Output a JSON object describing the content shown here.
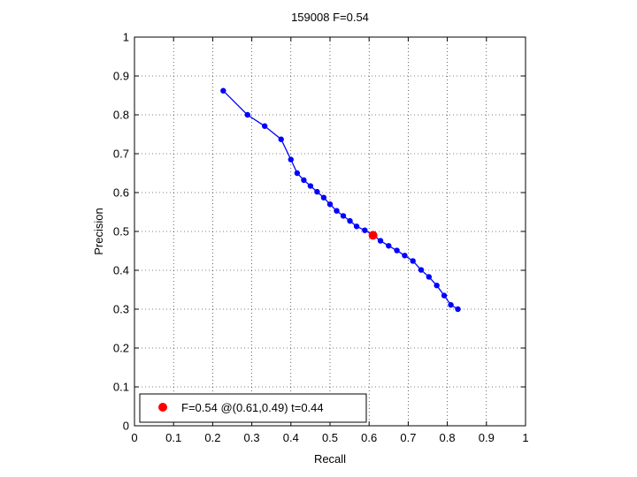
{
  "chart_data": {
    "type": "line",
    "title": "159008 F=0.54",
    "xlabel": "Recall",
    "ylabel": "Precision",
    "xlim": [
      0,
      1
    ],
    "ylim": [
      0,
      1
    ],
    "xticks": [
      "0",
      "0.1",
      "0.2",
      "0.3",
      "0.4",
      "0.5",
      "0.6",
      "0.7",
      "0.8",
      "0.9",
      "1"
    ],
    "yticks": [
      "0",
      "0.1",
      "0.2",
      "0.3",
      "0.4",
      "0.5",
      "0.6",
      "0.7",
      "0.8",
      "0.9",
      "1"
    ],
    "grid": true,
    "legend_position": "bottom-left",
    "series": [
      {
        "color": "#0000ff",
        "x": [
          0.227,
          0.289,
          0.333,
          0.375,
          0.4,
          0.416,
          0.433,
          0.45,
          0.467,
          0.484,
          0.5,
          0.517,
          0.534,
          0.551,
          0.568,
          0.589,
          0.609,
          0.629,
          0.65,
          0.671,
          0.691,
          0.712,
          0.733,
          0.753,
          0.773,
          0.792,
          0.809,
          0.827
        ],
        "y": [
          0.862,
          0.8,
          0.771,
          0.737,
          0.685,
          0.65,
          0.632,
          0.617,
          0.602,
          0.587,
          0.57,
          0.553,
          0.54,
          0.527,
          0.513,
          0.503,
          0.492,
          0.476,
          0.463,
          0.451,
          0.438,
          0.424,
          0.401,
          0.383,
          0.361,
          0.335,
          0.311,
          0.3
        ]
      }
    ],
    "highlight": {
      "x": 0.61,
      "y": 0.49,
      "color": "#ff0000",
      "label": "F=0.54 @(0.61,0.49) t=0.44"
    }
  }
}
